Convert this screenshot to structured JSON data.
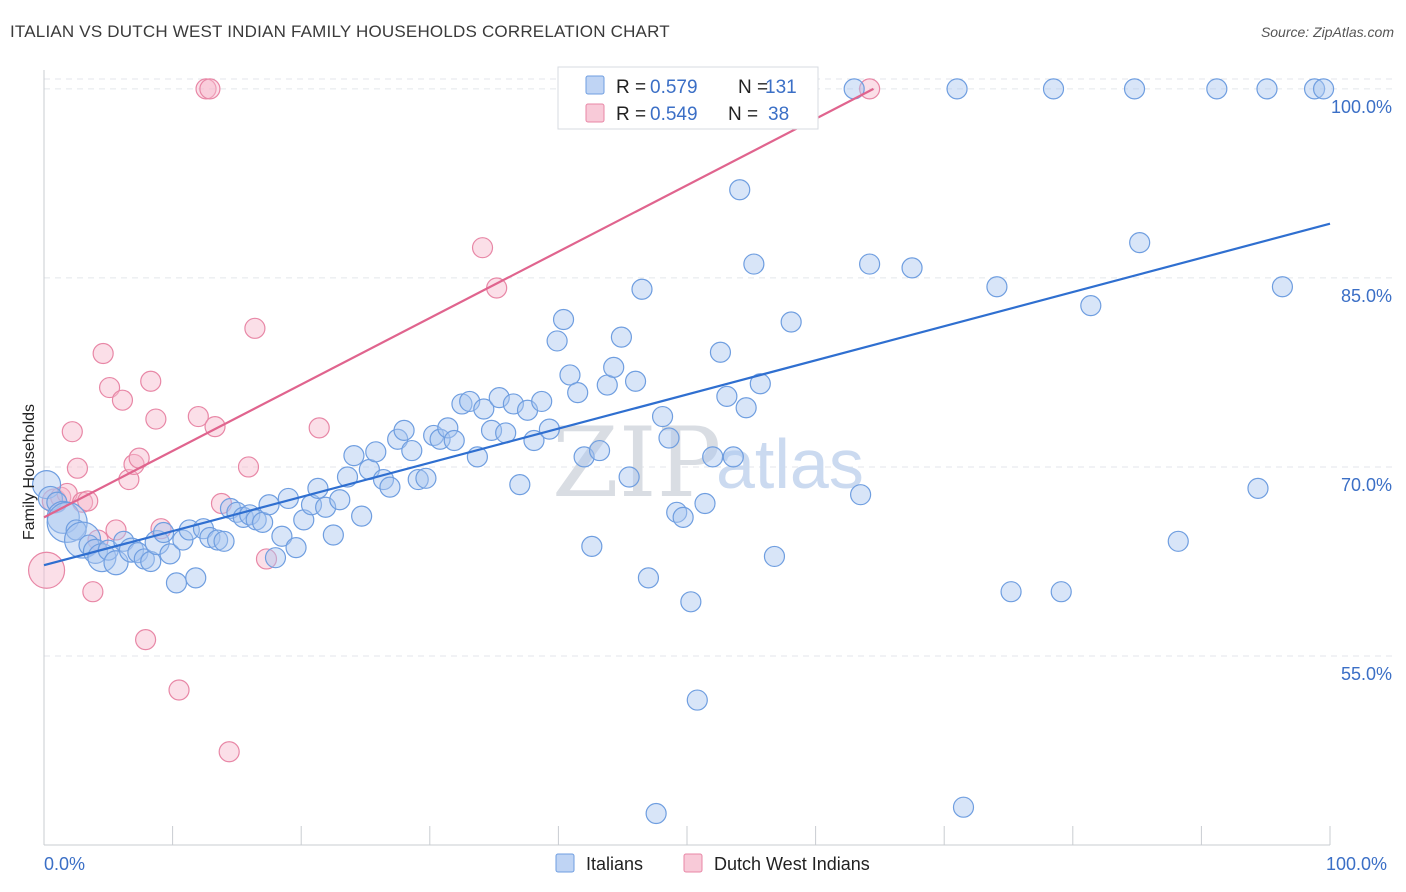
{
  "header": {
    "title": "ITALIAN VS DUTCH WEST INDIAN FAMILY HOUSEHOLDS CORRELATION CHART",
    "source": "Source: ZipAtlas.com"
  },
  "watermark": {
    "zip": "ZIP",
    "atlas": "atlas"
  },
  "colors": {
    "italians_fill": "#a9c6f0",
    "italians_stroke": "#6f9ee0",
    "italians_line": "#2f6fd0",
    "dutch_fill": "#f6b8cb",
    "dutch_stroke": "#e887a6",
    "dutch_line": "#e0648e",
    "tick_text": "#3b6fc6",
    "grid": "#e3e6eb"
  },
  "legend": {
    "rows": [
      {
        "r_label": "R =",
        "r_value": "0.579",
        "n_label": "N =",
        "n_value": "131"
      },
      {
        "r_label": "R =",
        "r_value": "0.549",
        "n_label": "N =",
        "n_value": "38"
      }
    ]
  },
  "chart_data": {
    "type": "scatter",
    "title": "ITALIAN VS DUTCH WEST INDIAN FAMILY HOUSEHOLDS CORRELATION CHART",
    "xlabel": "",
    "ylabel": "Family Households",
    "xlim": [
      0,
      100
    ],
    "ylim": [
      40,
      101.5
    ],
    "x_tick_labels": [
      "0.0%",
      "100.0%"
    ],
    "y_ticks": [
      55,
      70,
      85,
      100
    ],
    "y_tick_labels": [
      "55.0%",
      "70.0%",
      "85.0%",
      "100.0%"
    ],
    "grid": true,
    "legend_position": "top-center",
    "series": [
      {
        "name": "Italians",
        "r": 0.579,
        "n": 131,
        "trend": {
          "x": [
            0,
            100
          ],
          "y": [
            62.2,
            89.3
          ]
        },
        "points": [
          [
            0.2,
            68.6,
            14
          ],
          [
            0.5,
            67.5,
            12
          ],
          [
            1.0,
            67.2,
            10
          ],
          [
            1.5,
            66.0,
            16
          ],
          [
            1.8,
            65.6,
            20
          ],
          [
            2.5,
            65.0,
            10
          ],
          [
            3.0,
            64.2,
            18
          ],
          [
            3.5,
            63.8,
            10
          ],
          [
            4.0,
            63.3,
            12
          ],
          [
            4.5,
            62.8,
            14
          ],
          [
            5.0,
            63.4,
            10
          ],
          [
            5.6,
            62.4,
            12
          ],
          [
            6.2,
            64.1,
            10
          ],
          [
            6.8,
            63.4,
            12
          ],
          [
            7.3,
            63.2,
            10
          ],
          [
            7.8,
            62.7,
            10
          ],
          [
            8.3,
            62.5,
            10
          ],
          [
            8.8,
            64.0,
            12
          ],
          [
            9.3,
            64.8,
            10
          ],
          [
            9.8,
            63.1,
            10
          ],
          [
            10.3,
            60.8,
            10
          ],
          [
            10.8,
            64.2,
            10
          ],
          [
            11.3,
            65.0,
            10
          ],
          [
            11.8,
            61.2,
            10
          ],
          [
            12.4,
            65.1,
            10
          ],
          [
            12.9,
            64.4,
            10
          ],
          [
            13.5,
            64.2,
            10
          ],
          [
            14.0,
            64.1,
            10
          ],
          [
            14.5,
            66.7,
            10
          ],
          [
            15.0,
            66.4,
            10
          ],
          [
            15.5,
            66.0,
            10
          ],
          [
            16.0,
            66.2,
            10
          ],
          [
            16.5,
            65.8,
            10
          ],
          [
            17.0,
            65.6,
            10
          ],
          [
            17.5,
            67.0,
            10
          ],
          [
            18.0,
            62.8,
            10
          ],
          [
            18.5,
            64.5,
            10
          ],
          [
            19.0,
            67.5,
            10
          ],
          [
            19.6,
            63.6,
            10
          ],
          [
            20.2,
            65.8,
            10
          ],
          [
            20.8,
            67.0,
            10
          ],
          [
            21.3,
            68.3,
            10
          ],
          [
            21.9,
            66.8,
            10
          ],
          [
            22.5,
            64.6,
            10
          ],
          [
            23.0,
            67.4,
            10
          ],
          [
            23.6,
            69.2,
            10
          ],
          [
            24.1,
            70.9,
            10
          ],
          [
            24.7,
            66.1,
            10
          ],
          [
            25.3,
            69.8,
            10
          ],
          [
            25.8,
            71.2,
            10
          ],
          [
            26.4,
            69.0,
            10
          ],
          [
            26.9,
            68.4,
            10
          ],
          [
            27.5,
            72.2,
            10
          ],
          [
            28.0,
            72.9,
            10
          ],
          [
            28.6,
            71.3,
            10
          ],
          [
            29.1,
            69.0,
            10
          ],
          [
            29.7,
            69.1,
            10
          ],
          [
            30.3,
            72.5,
            10
          ],
          [
            30.8,
            72.2,
            10
          ],
          [
            31.4,
            73.1,
            10
          ],
          [
            31.9,
            72.1,
            10
          ],
          [
            32.5,
            75.0,
            10
          ],
          [
            33.1,
            75.2,
            10
          ],
          [
            33.7,
            70.8,
            10
          ],
          [
            34.2,
            74.6,
            10
          ],
          [
            34.8,
            72.9,
            10
          ],
          [
            35.4,
            75.5,
            10
          ],
          [
            35.9,
            72.7,
            10
          ],
          [
            36.5,
            75.0,
            10
          ],
          [
            37.0,
            68.6,
            10
          ],
          [
            37.6,
            74.5,
            10
          ],
          [
            38.1,
            72.1,
            10
          ],
          [
            38.7,
            75.2,
            10
          ],
          [
            39.3,
            73.0,
            10
          ],
          [
            39.9,
            80.0,
            10
          ],
          [
            40.4,
            81.7,
            10
          ],
          [
            40.9,
            77.3,
            10
          ],
          [
            41.5,
            75.9,
            10
          ],
          [
            42.0,
            70.8,
            10
          ],
          [
            42.6,
            63.7,
            10
          ],
          [
            43.2,
            71.3,
            10
          ],
          [
            43.8,
            76.5,
            10
          ],
          [
            44.3,
            77.9,
            10
          ],
          [
            44.9,
            80.3,
            10
          ],
          [
            45.5,
            69.2,
            10
          ],
          [
            46.0,
            76.8,
            10
          ],
          [
            46.5,
            84.1,
            10
          ],
          [
            47.0,
            61.2,
            10
          ],
          [
            47.6,
            42.5,
            10
          ],
          [
            48.1,
            74.0,
            10
          ],
          [
            48.6,
            72.3,
            10
          ],
          [
            49.2,
            66.4,
            10
          ],
          [
            49.7,
            66.0,
            10
          ],
          [
            50.3,
            59.3,
            10
          ],
          [
            50.8,
            51.5,
            10
          ],
          [
            51.4,
            67.1,
            10
          ],
          [
            52.0,
            70.8,
            10
          ],
          [
            52.6,
            79.1,
            10
          ],
          [
            53.1,
            75.6,
            10
          ],
          [
            53.6,
            70.8,
            10
          ],
          [
            54.1,
            92.0,
            10
          ],
          [
            54.6,
            74.7,
            10
          ],
          [
            55.2,
            86.1,
            10
          ],
          [
            55.7,
            76.6,
            10
          ],
          [
            56.3,
            100.0,
            10
          ],
          [
            56.8,
            62.9,
            10
          ],
          [
            58.1,
            81.5,
            10
          ],
          [
            63.0,
            100.0,
            10
          ],
          [
            63.5,
            67.8,
            10
          ],
          [
            64.2,
            86.1,
            10
          ],
          [
            67.5,
            85.8,
            10
          ],
          [
            71.0,
            100.0,
            10
          ],
          [
            71.5,
            43.0,
            10
          ],
          [
            74.1,
            84.3,
            10
          ],
          [
            75.2,
            60.1,
            10
          ],
          [
            78.5,
            100.0,
            10
          ],
          [
            79.1,
            60.1,
            10
          ],
          [
            81.4,
            82.8,
            10
          ],
          [
            84.8,
            100.0,
            10
          ],
          [
            85.2,
            87.8,
            10
          ],
          [
            88.2,
            64.1,
            10
          ],
          [
            91.2,
            100.0,
            10
          ],
          [
            94.4,
            68.3,
            10
          ],
          [
            95.1,
            100.0,
            10
          ],
          [
            96.3,
            84.3,
            10
          ],
          [
            98.8,
            100.0,
            10
          ],
          [
            99.5,
            100.0,
            10
          ]
        ]
      },
      {
        "name": "Dutch West Indians",
        "r": 0.549,
        "n": 38,
        "trend": {
          "x": [
            0,
            64.5
          ],
          "y": [
            66.0,
            100.0
          ]
        },
        "points": [
          [
            0.2,
            61.8,
            18
          ],
          [
            0.8,
            67.3,
            12
          ],
          [
            1.3,
            67.6,
            10
          ],
          [
            1.8,
            67.9,
            10
          ],
          [
            2.2,
            72.8,
            10
          ],
          [
            2.6,
            69.9,
            10
          ],
          [
            3.0,
            67.2,
            10
          ],
          [
            3.4,
            67.3,
            10
          ],
          [
            3.8,
            60.1,
            10
          ],
          [
            4.2,
            64.2,
            10
          ],
          [
            4.6,
            79.0,
            10
          ],
          [
            5.1,
            76.3,
            10
          ],
          [
            5.6,
            65.0,
            10
          ],
          [
            6.1,
            75.3,
            10
          ],
          [
            6.6,
            69.0,
            10
          ],
          [
            7.0,
            70.2,
            10
          ],
          [
            7.4,
            70.7,
            10
          ],
          [
            7.9,
            56.3,
            10
          ],
          [
            8.3,
            76.8,
            10
          ],
          [
            8.7,
            73.8,
            10
          ],
          [
            9.1,
            65.1,
            10
          ],
          [
            10.5,
            52.3,
            10
          ],
          [
            12.0,
            74.0,
            10
          ],
          [
            12.6,
            100.0,
            10
          ],
          [
            12.9,
            100.0,
            10
          ],
          [
            13.3,
            73.2,
            10
          ],
          [
            13.8,
            67.1,
            10
          ],
          [
            14.4,
            47.4,
            10
          ],
          [
            15.9,
            70.0,
            10
          ],
          [
            16.4,
            81.0,
            10
          ],
          [
            17.3,
            62.7,
            10
          ],
          [
            21.4,
            73.1,
            10
          ],
          [
            34.1,
            87.4,
            10
          ],
          [
            35.2,
            84.2,
            10
          ],
          [
            64.2,
            100.0,
            10
          ]
        ]
      }
    ]
  },
  "bottom_legend": {
    "items": [
      "Italians",
      "Dutch West Indians"
    ]
  }
}
